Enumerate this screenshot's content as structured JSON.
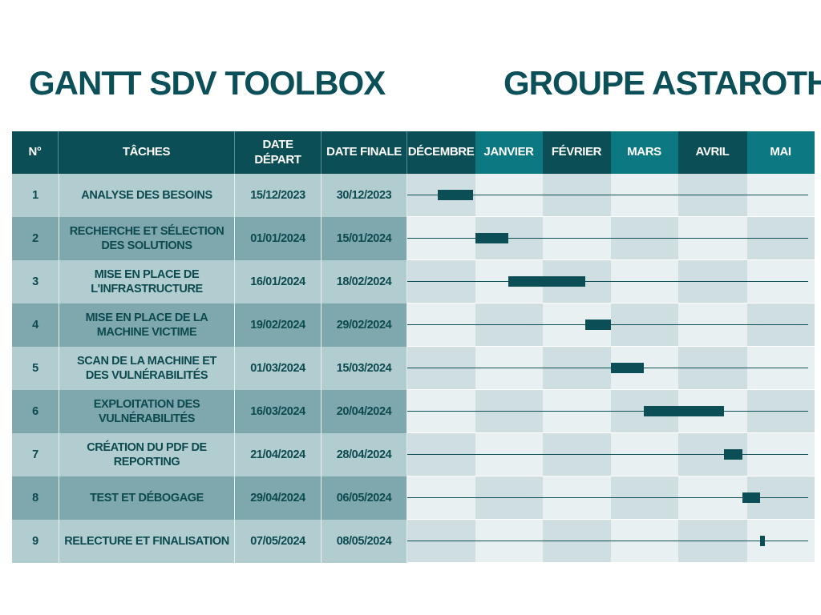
{
  "header": {
    "left_title": "GANTT SDV TOOLBOX",
    "right_title": "GROUPE ASTAROTH"
  },
  "columns": {
    "num": "N°",
    "task": "TÂCHES",
    "start": "DATE DÉPART",
    "end": "DATE FINALE"
  },
  "months": [
    "DÉCEMBRE",
    "JANVIER",
    "FÉVRIER",
    "MARS",
    "AVRIL",
    "MAI"
  ],
  "colors": {
    "dark_teal": "#0b4e55",
    "teal": "#0c7882",
    "row_light": "#b1cdd0",
    "row_dark": "#7ea8ad",
    "timeline_light": "#e8f0f1",
    "timeline_mid": "#cfdfe1",
    "title": "#0b5058"
  },
  "tasks": [
    {
      "num": "1",
      "name": "ANALYSE DES BESOINS",
      "start": "15/12/2023",
      "end": "30/12/2023"
    },
    {
      "num": "2",
      "name": "RECHERCHE ET SÉLECTION DES SOLUTIONS",
      "start": "01/01/2024",
      "end": "15/01/2024"
    },
    {
      "num": "3",
      "name": "MISE EN PLACE DE L'INFRASTRUCTURE",
      "start": "16/01/2024",
      "end": "18/02/2024"
    },
    {
      "num": "4",
      "name": "MISE EN PLACE DE LA MACHINE VICTIME",
      "start": "19/02/2024",
      "end": "29/02/2024"
    },
    {
      "num": "5",
      "name": "SCAN DE LA MACHINE ET DES VULNÉRABILITÉS",
      "start": "01/03/2024",
      "end": "15/03/2024"
    },
    {
      "num": "6",
      "name": "EXPLOITATION DES VULNÉRABILITÉS",
      "start": "16/03/2024",
      "end": "20/04/2024"
    },
    {
      "num": "7",
      "name": "CRÉATION DU PDF DE REPORTING",
      "start": "21/04/2024",
      "end": "28/04/2024"
    },
    {
      "num": "8",
      "name": "TEST ET DÉBOGAGE",
      "start": "29/04/2024",
      "end": "06/05/2024"
    },
    {
      "num": "9",
      "name": "RELECTURE ET FINALISATION",
      "start": "07/05/2024",
      "end": "08/05/2024"
    }
  ]
}
